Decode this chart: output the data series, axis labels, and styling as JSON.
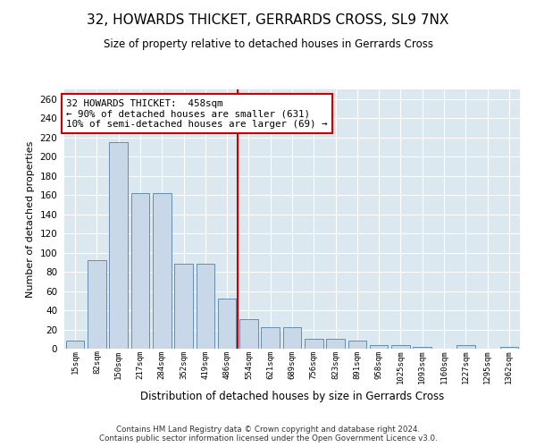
{
  "title": "32, HOWARDS THICKET, GERRARDS CROSS, SL9 7NX",
  "subtitle": "Size of property relative to detached houses in Gerrards Cross",
  "xlabel": "Distribution of detached houses by size in Gerrards Cross",
  "ylabel": "Number of detached properties",
  "bin_labels": [
    "15sqm",
    "82sqm",
    "150sqm",
    "217sqm",
    "284sqm",
    "352sqm",
    "419sqm",
    "486sqm",
    "554sqm",
    "621sqm",
    "689sqm",
    "756sqm",
    "823sqm",
    "891sqm",
    "958sqm",
    "1025sqm",
    "1093sqm",
    "1160sqm",
    "1227sqm",
    "1295sqm",
    "1362sqm"
  ],
  "bar_values": [
    8,
    92,
    215,
    162,
    162,
    88,
    88,
    52,
    31,
    22,
    22,
    10,
    10,
    8,
    4,
    4,
    2,
    0,
    4,
    0,
    2
  ],
  "bar_color": "#c8d8e8",
  "bar_edge_color": "#5580a0",
  "vline_x": 7.5,
  "vline_color": "#cc0000",
  "annotation_line1": "32 HOWARDS THICKET:  458sqm",
  "annotation_line2": "← 90% of detached houses are smaller (631)",
  "annotation_line3": "10% of semi-detached houses are larger (69) →",
  "annotation_box_facecolor": "white",
  "annotation_box_edgecolor": "#cc0000",
  "ylim": [
    0,
    270
  ],
  "yticks": [
    0,
    20,
    40,
    60,
    80,
    100,
    120,
    140,
    160,
    180,
    200,
    220,
    240,
    260
  ],
  "bg_color": "#dce8f0",
  "grid_color": "#ffffff",
  "footer_line1": "Contains HM Land Registry data © Crown copyright and database right 2024.",
  "footer_line2": "Contains public sector information licensed under the Open Government Licence v3.0."
}
